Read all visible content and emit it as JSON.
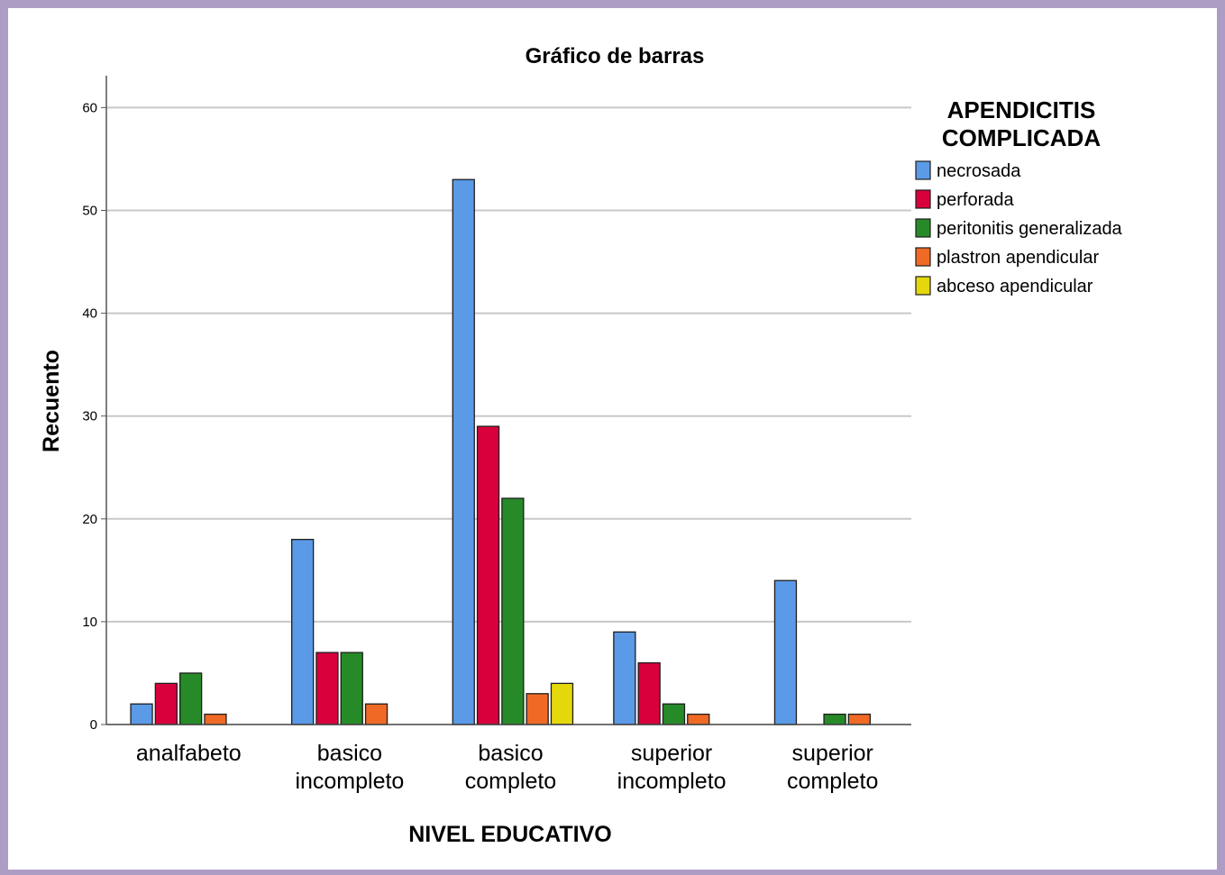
{
  "chart_data": {
    "type": "bar",
    "title": "Gráfico de barras",
    "xlabel": "NIVEL EDUCATIVO",
    "ylabel": "Recuento",
    "ylim": [
      0,
      63
    ],
    "yticks": [
      0,
      10,
      20,
      30,
      40,
      50,
      60
    ],
    "grid": true,
    "legend_position": "right",
    "legend_title": [
      "APENDICITIS",
      "COMPLICADA"
    ],
    "categories": [
      [
        "analfabeto"
      ],
      [
        "basico",
        "incompleto"
      ],
      [
        "basico",
        "completo"
      ],
      [
        "superior",
        "incompleto"
      ],
      [
        "superior",
        "completo"
      ]
    ],
    "series": [
      {
        "name": "necrosada",
        "color": "#5a9ae6",
        "values": [
          2,
          18,
          53,
          9,
          14
        ]
      },
      {
        "name": "perforada",
        "color": "#d8003c",
        "values": [
          4,
          7,
          29,
          6,
          0
        ]
      },
      {
        "name": "peritonitis generalizada",
        "color": "#278a28",
        "values": [
          5,
          7,
          22,
          2,
          1
        ]
      },
      {
        "name": "plastron apendicular",
        "color": "#f06a26",
        "values": [
          1,
          2,
          3,
          1,
          1
        ]
      },
      {
        "name": "abceso apendicular",
        "color": "#e4d80c",
        "values": [
          0,
          0,
          4,
          0,
          0
        ]
      }
    ]
  }
}
